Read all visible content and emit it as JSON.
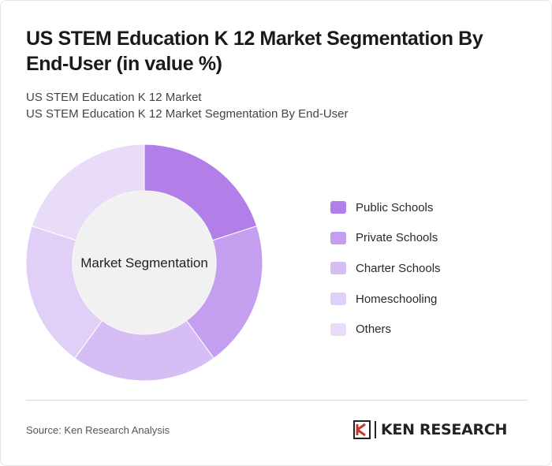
{
  "title": "US STEM Education K 12 Market Segmentation By End-User (in value %)",
  "subtitle_line1": "US STEM Education K 12 Market",
  "subtitle_line2": "US STEM Education K 12 Market Segmentation By End-User",
  "source": "Source: Ken Research Analysis",
  "logo_text": "KEN RESEARCH",
  "chart_data": {
    "type": "pie",
    "style": "donut",
    "center_label": "Market Segmentation",
    "legend_position": "right",
    "series": [
      {
        "name": "Public Schools",
        "value": 20,
        "color": "#b27ee8"
      },
      {
        "name": "Private Schools",
        "value": 20,
        "color": "#c49ff0"
      },
      {
        "name": "Charter Schools",
        "value": 20,
        "color": "#d6bdf4"
      },
      {
        "name": "Homeschooling",
        "value": 20,
        "color": "#e0cff7"
      },
      {
        "name": "Others",
        "value": 20,
        "color": "#e9dcf9"
      }
    ]
  }
}
